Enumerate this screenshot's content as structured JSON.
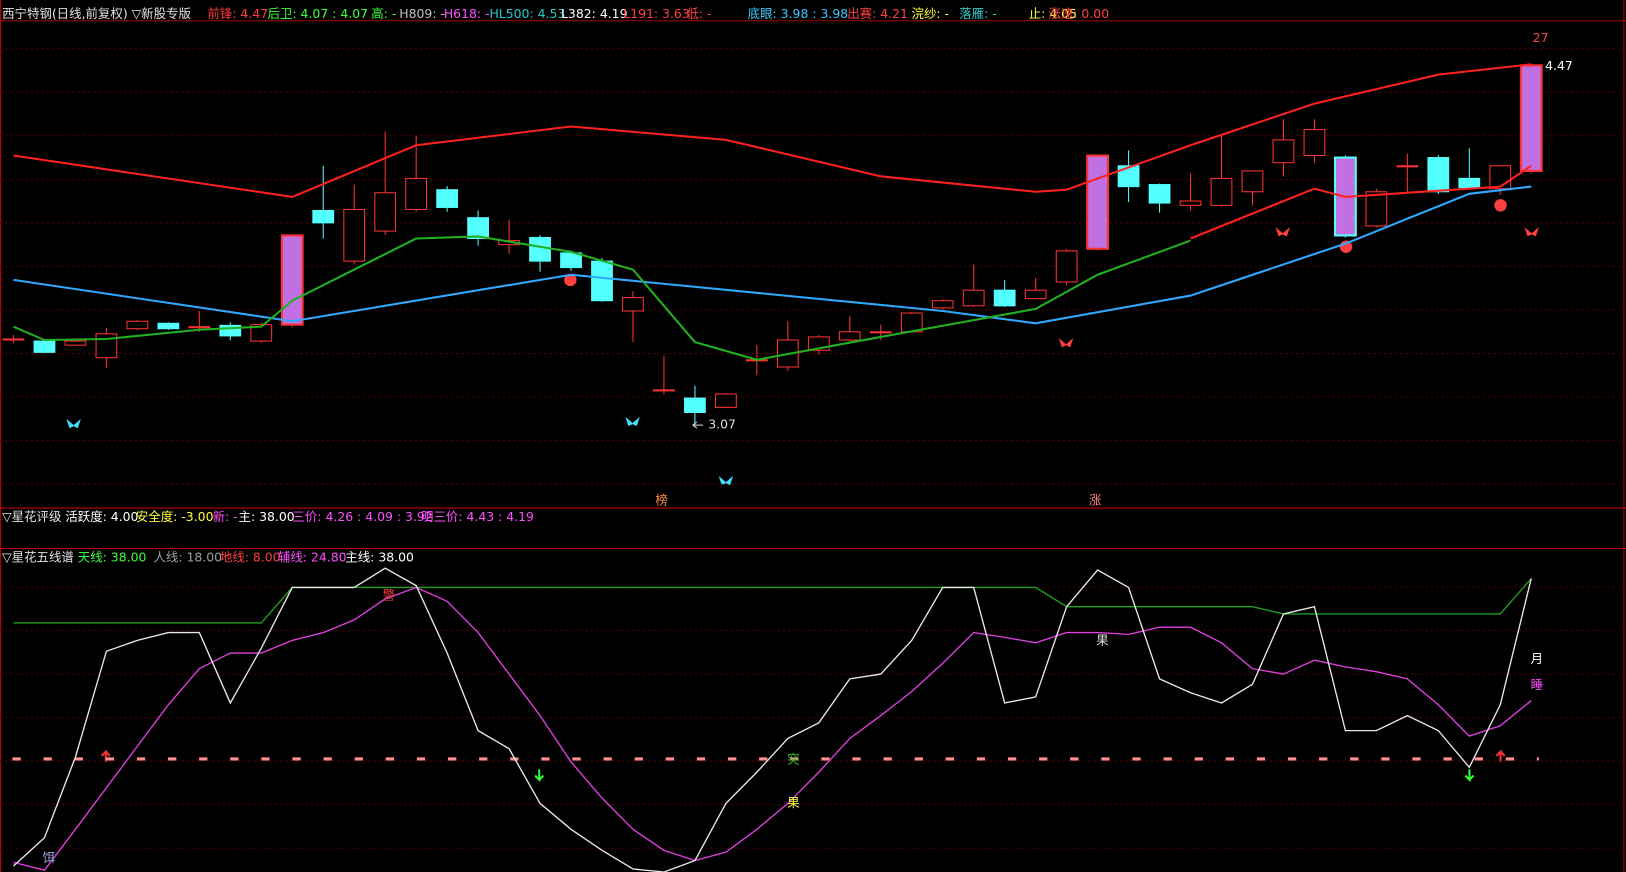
{
  "header": {
    "main": [
      {
        "text": "西宁特钢(日线,前复权) ▽新股专版",
        "color": "#e0e0e0"
      },
      {
        "text": "前锋: 4.47",
        "color": "#ff3c3c"
      },
      {
        "text": "后卫: 4.07 : 4.07",
        "color": "#3cff3c"
      },
      {
        "text": "高: -",
        "color": "#3cff3c"
      },
      {
        "text": "H809: -",
        "color": "#c0c0c0"
      },
      {
        "text": "H618: -",
        "color": "#ff50ff"
      },
      {
        "text": "HL500: 4.53",
        "color": "#28c8c8"
      },
      {
        "text": "L382: 4.19",
        "color": "#ffffff"
      },
      {
        "text": "L191: 3.63",
        "color": "#ff4040"
      },
      {
        "text": "低: -",
        "color": "#ff4040"
      },
      {
        "text": "底眼: 3.98 : 3.98",
        "color": "#3cc8ff"
      },
      {
        "text": "出赛: 4.21",
        "color": "#ff4040"
      },
      {
        "text": "浣纱: -",
        "color": "#ffff40"
      },
      {
        "text": "落雁: -",
        "color": "#28c8c8"
      },
      {
        "text": "止: 4.05",
        "color": "#ffff40"
      },
      {
        "text": "涨速: 0.00",
        "color": "#ff4040"
      }
    ],
    "rating": [
      {
        "text": "▽星花评级",
        "color": "#e0e0e0"
      },
      {
        "text": "活跃度: 4.00",
        "color": "#ffffff"
      },
      {
        "text": "安全度: -3.00",
        "color": "#ffff40"
      },
      {
        "text": "新: -",
        "color": "#ff50ff"
      },
      {
        "text": "主: 38.00",
        "color": "#ffffff"
      },
      {
        "text": "三价: 4.26 : 4.09 : 3.92",
        "color": "#ff50ff"
      },
      {
        "text": "明三价: 4.43 : 4.19",
        "color": "#ff50ff"
      }
    ],
    "staff": [
      {
        "text": "▽星花五线谱",
        "color": "#e0e0e0"
      },
      {
        "text": "天线: 38.00",
        "color": "#3cff3c"
      },
      {
        "text": "人线: 18.00",
        "color": "#a0a0a0"
      },
      {
        "text": "地线: 8.00",
        "color": "#ff3c3c"
      },
      {
        "text": "辅线: 24.80",
        "color": "#ff50ff"
      },
      {
        "text": "主线: 38.00",
        "color": "#ffffff"
      }
    ]
  },
  "chart_data": [
    {
      "type": "candlestick",
      "ylim": [
        2.747,
        4.692
      ],
      "open": [
        3.405,
        3.397,
        3.381,
        3.332,
        3.445,
        3.466,
        3.453,
        3.458,
        3.397,
        3.461,
        3.905,
        3.708,
        3.825,
        3.909,
        3.986,
        3.877,
        3.772,
        3.8,
        3.74,
        3.708,
        3.514,
        3.207,
        3.175,
        3.139,
        3.324,
        3.296,
        3.361,
        3.401,
        3.433,
        3.433,
        3.526,
        3.534,
        3.595,
        3.562,
        3.627,
        3.756,
        4.079,
        4.006,
        3.925,
        3.925,
        3.978,
        4.091,
        4.119,
        4.111,
        3.845,
        4.079,
        4.111,
        4.03,
        3.99,
        4.059
      ],
      "high": [
        3.42,
        3.4,
        3.4,
        3.449,
        3.48,
        3.47,
        3.514,
        3.47,
        3.47,
        3.81,
        4.079,
        4.006,
        4.212,
        4.196,
        4.0,
        3.905,
        3.869,
        3.81,
        3.75,
        3.72,
        3.591,
        3.34,
        3.223,
        3.195,
        3.381,
        3.474,
        3.42,
        3.494,
        3.461,
        3.51,
        3.56,
        3.695,
        3.635,
        3.643,
        3.756,
        4.12,
        4.139,
        4.01,
        4.05,
        4.2,
        4.06,
        4.26,
        4.26,
        4.12,
        3.99,
        4.127,
        4.12,
        4.147,
        4.08,
        4.47
      ],
      "low": [
        3.39,
        3.35,
        3.38,
        3.292,
        3.44,
        3.44,
        3.433,
        3.4,
        3.39,
        3.45,
        3.796,
        3.695,
        3.81,
        3.9,
        3.9,
        3.768,
        3.736,
        3.667,
        3.67,
        3.55,
        3.393,
        3.191,
        3.07,
        3.135,
        3.264,
        3.28,
        3.345,
        3.395,
        3.401,
        3.43,
        3.52,
        3.53,
        3.53,
        3.56,
        3.615,
        3.75,
        3.938,
        3.897,
        3.905,
        3.92,
        3.925,
        4.038,
        4.091,
        3.8,
        3.84,
        3.97,
        3.97,
        3.99,
        3.966,
        4.05
      ],
      "close": [
        3.405,
        3.353,
        3.397,
        3.425,
        3.474,
        3.445,
        3.453,
        3.417,
        3.461,
        3.808,
        3.857,
        3.909,
        3.974,
        4.03,
        3.917,
        3.796,
        3.788,
        3.708,
        3.683,
        3.554,
        3.566,
        3.207,
        3.119,
        3.191,
        3.324,
        3.401,
        3.413,
        3.433,
        3.433,
        3.506,
        3.554,
        3.595,
        3.534,
        3.595,
        3.748,
        4.119,
        3.998,
        3.934,
        3.942,
        4.03,
        4.059,
        4.18,
        4.22,
        3.808,
        3.978,
        4.079,
        3.978,
        3.994,
        4.079,
        4.47
      ],
      "up_color": "#ff3232",
      "down_color": "#54ffff",
      "limit_color": "#c070e0",
      "lines": [
        {
          "color": "#ff2020",
          "x": [
            0,
            9,
            13,
            18,
            23,
            28,
            33,
            34,
            38,
            42,
            46,
            49
          ],
          "values": [
            4.119,
            3.958,
            4.159,
            4.232,
            4.18,
            4.038,
            3.978,
            3.986,
            4.159,
            4.321,
            4.434,
            4.474
          ]
        },
        {
          "color": "#30a8ff",
          "x": [
            0,
            9,
            18,
            30,
            33,
            38,
            43,
            47,
            49
          ],
          "values": [
            3.635,
            3.474,
            3.655,
            3.514,
            3.466,
            3.574,
            3.776,
            3.97,
            3.998
          ]
        },
        {
          "color": "#20b020",
          "x": [
            0,
            1,
            3,
            6,
            8,
            9,
            11,
            13,
            15,
            18,
            20,
            22,
            24,
            28,
            33,
            35,
            38
          ],
          "values": [
            3.453,
            3.401,
            3.405,
            3.441,
            3.453,
            3.554,
            3.675,
            3.796,
            3.804,
            3.744,
            3.675,
            3.393,
            3.324,
            3.413,
            3.522,
            3.655,
            3.788
          ]
        },
        {
          "color": "#ff2020",
          "x": [
            38,
            42,
            43,
            48,
            49
          ],
          "values": [
            3.796,
            3.99,
            3.958,
            3.998,
            4.079
          ]
        }
      ],
      "annotations": [
        "4.47",
        "3.07",
        "27",
        "榜",
        "涨"
      ]
    },
    {
      "type": "line",
      "ylim": [
        -10.8,
        39.7
      ],
      "ref_value": 8,
      "ref_color": "#ff9090",
      "series": [
        {
          "color": "#e8e8e8",
          "values": [
            -9.8,
            -5.1,
            8.3,
            25.9,
            27.7,
            29.0,
            29.0,
            17.3,
            26.4,
            36.5,
            36.5,
            36.5,
            39.7,
            36.8,
            25.6,
            12.7,
            9.7,
            0.6,
            -3.7,
            -7.2,
            -10.3,
            -10.8,
            -8.9,
            0.6,
            5.8,
            11.4,
            14.0,
            21.3,
            22.1,
            27.7,
            36.5,
            36.5,
            17.3,
            18.3,
            33.3,
            39.4,
            36.5,
            21.3,
            19.0,
            17.3,
            20.4,
            32.1,
            33.3,
            12.7,
            12.7,
            15.2,
            12.7,
            6.6,
            17.0,
            38
          ]
        },
        {
          "color": "#e040e0",
          "values": [
            -9.2,
            -10.5,
            -3.7,
            3.2,
            10.1,
            17.0,
            23.0,
            25.6,
            25.6,
            27.7,
            29.0,
            31.1,
            34.6,
            36.5,
            34.2,
            29.0,
            22.1,
            15.2,
            7.5,
            1.5,
            -3.7,
            -7.2,
            -8.9,
            -7.5,
            -3.7,
            0.6,
            5.8,
            11.4,
            15.2,
            19.2,
            23.9,
            29.0,
            28.2,
            27.3,
            29.0,
            29.0,
            28.7,
            29.9,
            29.9,
            27.3,
            23.0,
            22.1,
            24.4,
            23.3,
            22.5,
            21.3,
            17.0,
            11.8,
            13.5,
            17.7
          ]
        },
        {
          "color": "#20a020",
          "values": [
            30.6,
            30.6,
            30.6,
            30.6,
            30.6,
            30.6,
            30.6,
            30.6,
            30.6,
            36.5,
            36.5,
            36.5,
            36.5,
            36.5,
            36.5,
            36.5,
            36.5,
            36.5,
            36.5,
            36.5,
            36.5,
            36.5,
            36.5,
            36.5,
            36.5,
            36.5,
            36.5,
            36.5,
            36.5,
            36.5,
            36.5,
            36.5,
            36.5,
            36.5,
            33.3,
            33.3,
            33.3,
            33.3,
            33.3,
            33.3,
            33.3,
            32.1,
            32.1,
            32.1,
            32.1,
            32.1,
            32.1,
            32.1,
            32.1,
            38
          ]
        }
      ],
      "annotations": [
        "饵",
        "警",
        "突",
        "果",
        "果",
        "月",
        "睡"
      ]
    }
  ]
}
